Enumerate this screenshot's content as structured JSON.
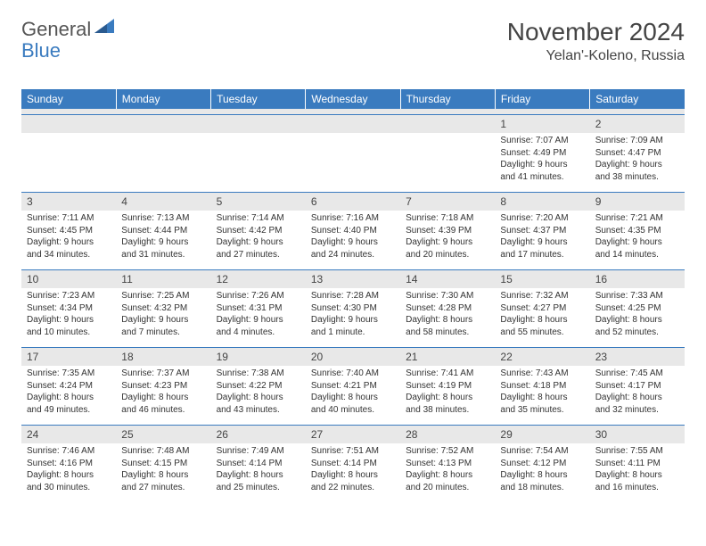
{
  "logo": {
    "text_general": "General",
    "text_blue": "Blue",
    "icon_fill": "#3a7bbf"
  },
  "title": {
    "month_year": "November 2024",
    "location": "Yelan'-Koleno, Russia"
  },
  "colors": {
    "header_bg": "#3a7bbf",
    "header_text": "#ffffff",
    "daynum_bg": "#e8e8e8",
    "border": "#3a7bbf"
  },
  "day_headers": [
    "Sunday",
    "Monday",
    "Tuesday",
    "Wednesday",
    "Thursday",
    "Friday",
    "Saturday"
  ],
  "weeks": [
    [
      {
        "n": "",
        "sunrise": "",
        "sunset": "",
        "daylight": ""
      },
      {
        "n": "",
        "sunrise": "",
        "sunset": "",
        "daylight": ""
      },
      {
        "n": "",
        "sunrise": "",
        "sunset": "",
        "daylight": ""
      },
      {
        "n": "",
        "sunrise": "",
        "sunset": "",
        "daylight": ""
      },
      {
        "n": "",
        "sunrise": "",
        "sunset": "",
        "daylight": ""
      },
      {
        "n": "1",
        "sunrise": "Sunrise: 7:07 AM",
        "sunset": "Sunset: 4:49 PM",
        "daylight": "Daylight: 9 hours and 41 minutes."
      },
      {
        "n": "2",
        "sunrise": "Sunrise: 7:09 AM",
        "sunset": "Sunset: 4:47 PM",
        "daylight": "Daylight: 9 hours and 38 minutes."
      }
    ],
    [
      {
        "n": "3",
        "sunrise": "Sunrise: 7:11 AM",
        "sunset": "Sunset: 4:45 PM",
        "daylight": "Daylight: 9 hours and 34 minutes."
      },
      {
        "n": "4",
        "sunrise": "Sunrise: 7:13 AM",
        "sunset": "Sunset: 4:44 PM",
        "daylight": "Daylight: 9 hours and 31 minutes."
      },
      {
        "n": "5",
        "sunrise": "Sunrise: 7:14 AM",
        "sunset": "Sunset: 4:42 PM",
        "daylight": "Daylight: 9 hours and 27 minutes."
      },
      {
        "n": "6",
        "sunrise": "Sunrise: 7:16 AM",
        "sunset": "Sunset: 4:40 PM",
        "daylight": "Daylight: 9 hours and 24 minutes."
      },
      {
        "n": "7",
        "sunrise": "Sunrise: 7:18 AM",
        "sunset": "Sunset: 4:39 PM",
        "daylight": "Daylight: 9 hours and 20 minutes."
      },
      {
        "n": "8",
        "sunrise": "Sunrise: 7:20 AM",
        "sunset": "Sunset: 4:37 PM",
        "daylight": "Daylight: 9 hours and 17 minutes."
      },
      {
        "n": "9",
        "sunrise": "Sunrise: 7:21 AM",
        "sunset": "Sunset: 4:35 PM",
        "daylight": "Daylight: 9 hours and 14 minutes."
      }
    ],
    [
      {
        "n": "10",
        "sunrise": "Sunrise: 7:23 AM",
        "sunset": "Sunset: 4:34 PM",
        "daylight": "Daylight: 9 hours and 10 minutes."
      },
      {
        "n": "11",
        "sunrise": "Sunrise: 7:25 AM",
        "sunset": "Sunset: 4:32 PM",
        "daylight": "Daylight: 9 hours and 7 minutes."
      },
      {
        "n": "12",
        "sunrise": "Sunrise: 7:26 AM",
        "sunset": "Sunset: 4:31 PM",
        "daylight": "Daylight: 9 hours and 4 minutes."
      },
      {
        "n": "13",
        "sunrise": "Sunrise: 7:28 AM",
        "sunset": "Sunset: 4:30 PM",
        "daylight": "Daylight: 9 hours and 1 minute."
      },
      {
        "n": "14",
        "sunrise": "Sunrise: 7:30 AM",
        "sunset": "Sunset: 4:28 PM",
        "daylight": "Daylight: 8 hours and 58 minutes."
      },
      {
        "n": "15",
        "sunrise": "Sunrise: 7:32 AM",
        "sunset": "Sunset: 4:27 PM",
        "daylight": "Daylight: 8 hours and 55 minutes."
      },
      {
        "n": "16",
        "sunrise": "Sunrise: 7:33 AM",
        "sunset": "Sunset: 4:25 PM",
        "daylight": "Daylight: 8 hours and 52 minutes."
      }
    ],
    [
      {
        "n": "17",
        "sunrise": "Sunrise: 7:35 AM",
        "sunset": "Sunset: 4:24 PM",
        "daylight": "Daylight: 8 hours and 49 minutes."
      },
      {
        "n": "18",
        "sunrise": "Sunrise: 7:37 AM",
        "sunset": "Sunset: 4:23 PM",
        "daylight": "Daylight: 8 hours and 46 minutes."
      },
      {
        "n": "19",
        "sunrise": "Sunrise: 7:38 AM",
        "sunset": "Sunset: 4:22 PM",
        "daylight": "Daylight: 8 hours and 43 minutes."
      },
      {
        "n": "20",
        "sunrise": "Sunrise: 7:40 AM",
        "sunset": "Sunset: 4:21 PM",
        "daylight": "Daylight: 8 hours and 40 minutes."
      },
      {
        "n": "21",
        "sunrise": "Sunrise: 7:41 AM",
        "sunset": "Sunset: 4:19 PM",
        "daylight": "Daylight: 8 hours and 38 minutes."
      },
      {
        "n": "22",
        "sunrise": "Sunrise: 7:43 AM",
        "sunset": "Sunset: 4:18 PM",
        "daylight": "Daylight: 8 hours and 35 minutes."
      },
      {
        "n": "23",
        "sunrise": "Sunrise: 7:45 AM",
        "sunset": "Sunset: 4:17 PM",
        "daylight": "Daylight: 8 hours and 32 minutes."
      }
    ],
    [
      {
        "n": "24",
        "sunrise": "Sunrise: 7:46 AM",
        "sunset": "Sunset: 4:16 PM",
        "daylight": "Daylight: 8 hours and 30 minutes."
      },
      {
        "n": "25",
        "sunrise": "Sunrise: 7:48 AM",
        "sunset": "Sunset: 4:15 PM",
        "daylight": "Daylight: 8 hours and 27 minutes."
      },
      {
        "n": "26",
        "sunrise": "Sunrise: 7:49 AM",
        "sunset": "Sunset: 4:14 PM",
        "daylight": "Daylight: 8 hours and 25 minutes."
      },
      {
        "n": "27",
        "sunrise": "Sunrise: 7:51 AM",
        "sunset": "Sunset: 4:14 PM",
        "daylight": "Daylight: 8 hours and 22 minutes."
      },
      {
        "n": "28",
        "sunrise": "Sunrise: 7:52 AM",
        "sunset": "Sunset: 4:13 PM",
        "daylight": "Daylight: 8 hours and 20 minutes."
      },
      {
        "n": "29",
        "sunrise": "Sunrise: 7:54 AM",
        "sunset": "Sunset: 4:12 PM",
        "daylight": "Daylight: 8 hours and 18 minutes."
      },
      {
        "n": "30",
        "sunrise": "Sunrise: 7:55 AM",
        "sunset": "Sunset: 4:11 PM",
        "daylight": "Daylight: 8 hours and 16 minutes."
      }
    ]
  ]
}
